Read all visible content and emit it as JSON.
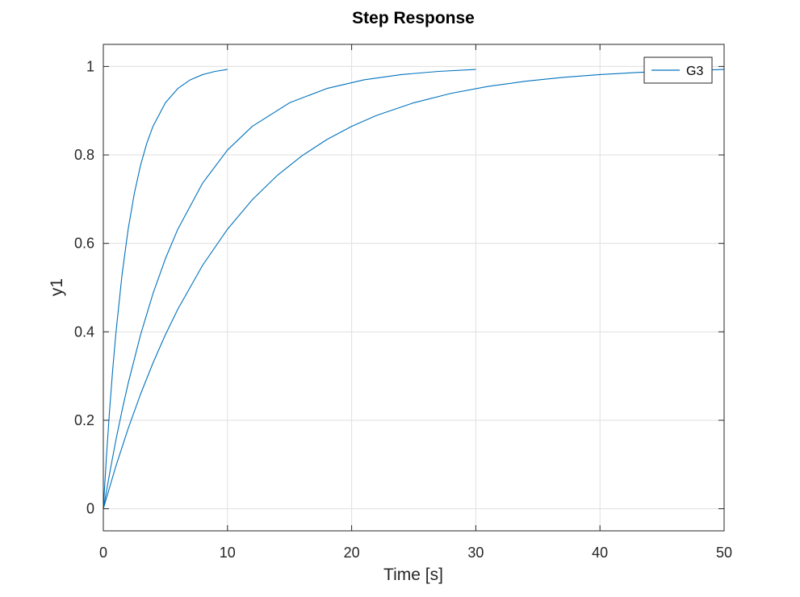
{
  "chart_data": {
    "type": "line",
    "title": "Step Response",
    "xlabel": "Time [s]",
    "ylabel": "y1",
    "xlim": [
      0,
      50
    ],
    "ylim": [
      -0.05,
      1.05
    ],
    "xticks": [
      0,
      10,
      20,
      30,
      40,
      50
    ],
    "yticks": [
      0,
      0.2,
      0.4,
      0.6,
      0.8,
      1
    ],
    "xtick_labels": [
      "0",
      "10",
      "20",
      "30",
      "40",
      "50"
    ],
    "ytick_labels": [
      "0",
      "0.2",
      "0.4",
      "0.6",
      "0.8",
      "1"
    ],
    "grid": true,
    "legend": {
      "position": "top-right",
      "entries": [
        "G3"
      ]
    },
    "series": [
      {
        "name": "G3",
        "color": "#0072bd",
        "x": [
          0,
          0.25,
          0.5,
          0.75,
          1,
          1.5,
          2,
          2.5,
          3,
          3.5,
          4,
          5,
          6,
          7,
          8,
          9,
          10
        ],
        "y": [
          0,
          0.1175,
          0.2212,
          0.3127,
          0.3935,
          0.5276,
          0.6321,
          0.7135,
          0.7769,
          0.8262,
          0.8647,
          0.9179,
          0.9502,
          0.9698,
          0.9817,
          0.9889,
          0.9933
        ]
      },
      {
        "color": "#0072bd",
        "x": [
          0,
          0.5,
          1,
          1.5,
          2,
          3,
          4,
          5,
          6,
          8,
          10,
          12,
          15,
          18,
          21,
          24,
          27,
          30
        ],
        "y": [
          0,
          0.0787,
          0.1535,
          0.2212,
          0.2835,
          0.3935,
          0.4866,
          0.5654,
          0.6321,
          0.7364,
          0.8111,
          0.8647,
          0.9179,
          0.9502,
          0.9698,
          0.9817,
          0.9889,
          0.9933
        ]
      },
      {
        "color": "#0072bd",
        "x": [
          0,
          1,
          2,
          3,
          4,
          5,
          6,
          8,
          10,
          12,
          14,
          16,
          18,
          20,
          22,
          25,
          28,
          31,
          34,
          37,
          40,
          43,
          46,
          50
        ],
        "y": [
          0,
          0.0952,
          0.1813,
          0.2592,
          0.3297,
          0.3935,
          0.4512,
          0.5507,
          0.6321,
          0.6988,
          0.7534,
          0.7981,
          0.8347,
          0.8647,
          0.8892,
          0.9179,
          0.9392,
          0.955,
          0.9666,
          0.9753,
          0.9817,
          0.9864,
          0.9899,
          0.9933
        ]
      }
    ]
  }
}
